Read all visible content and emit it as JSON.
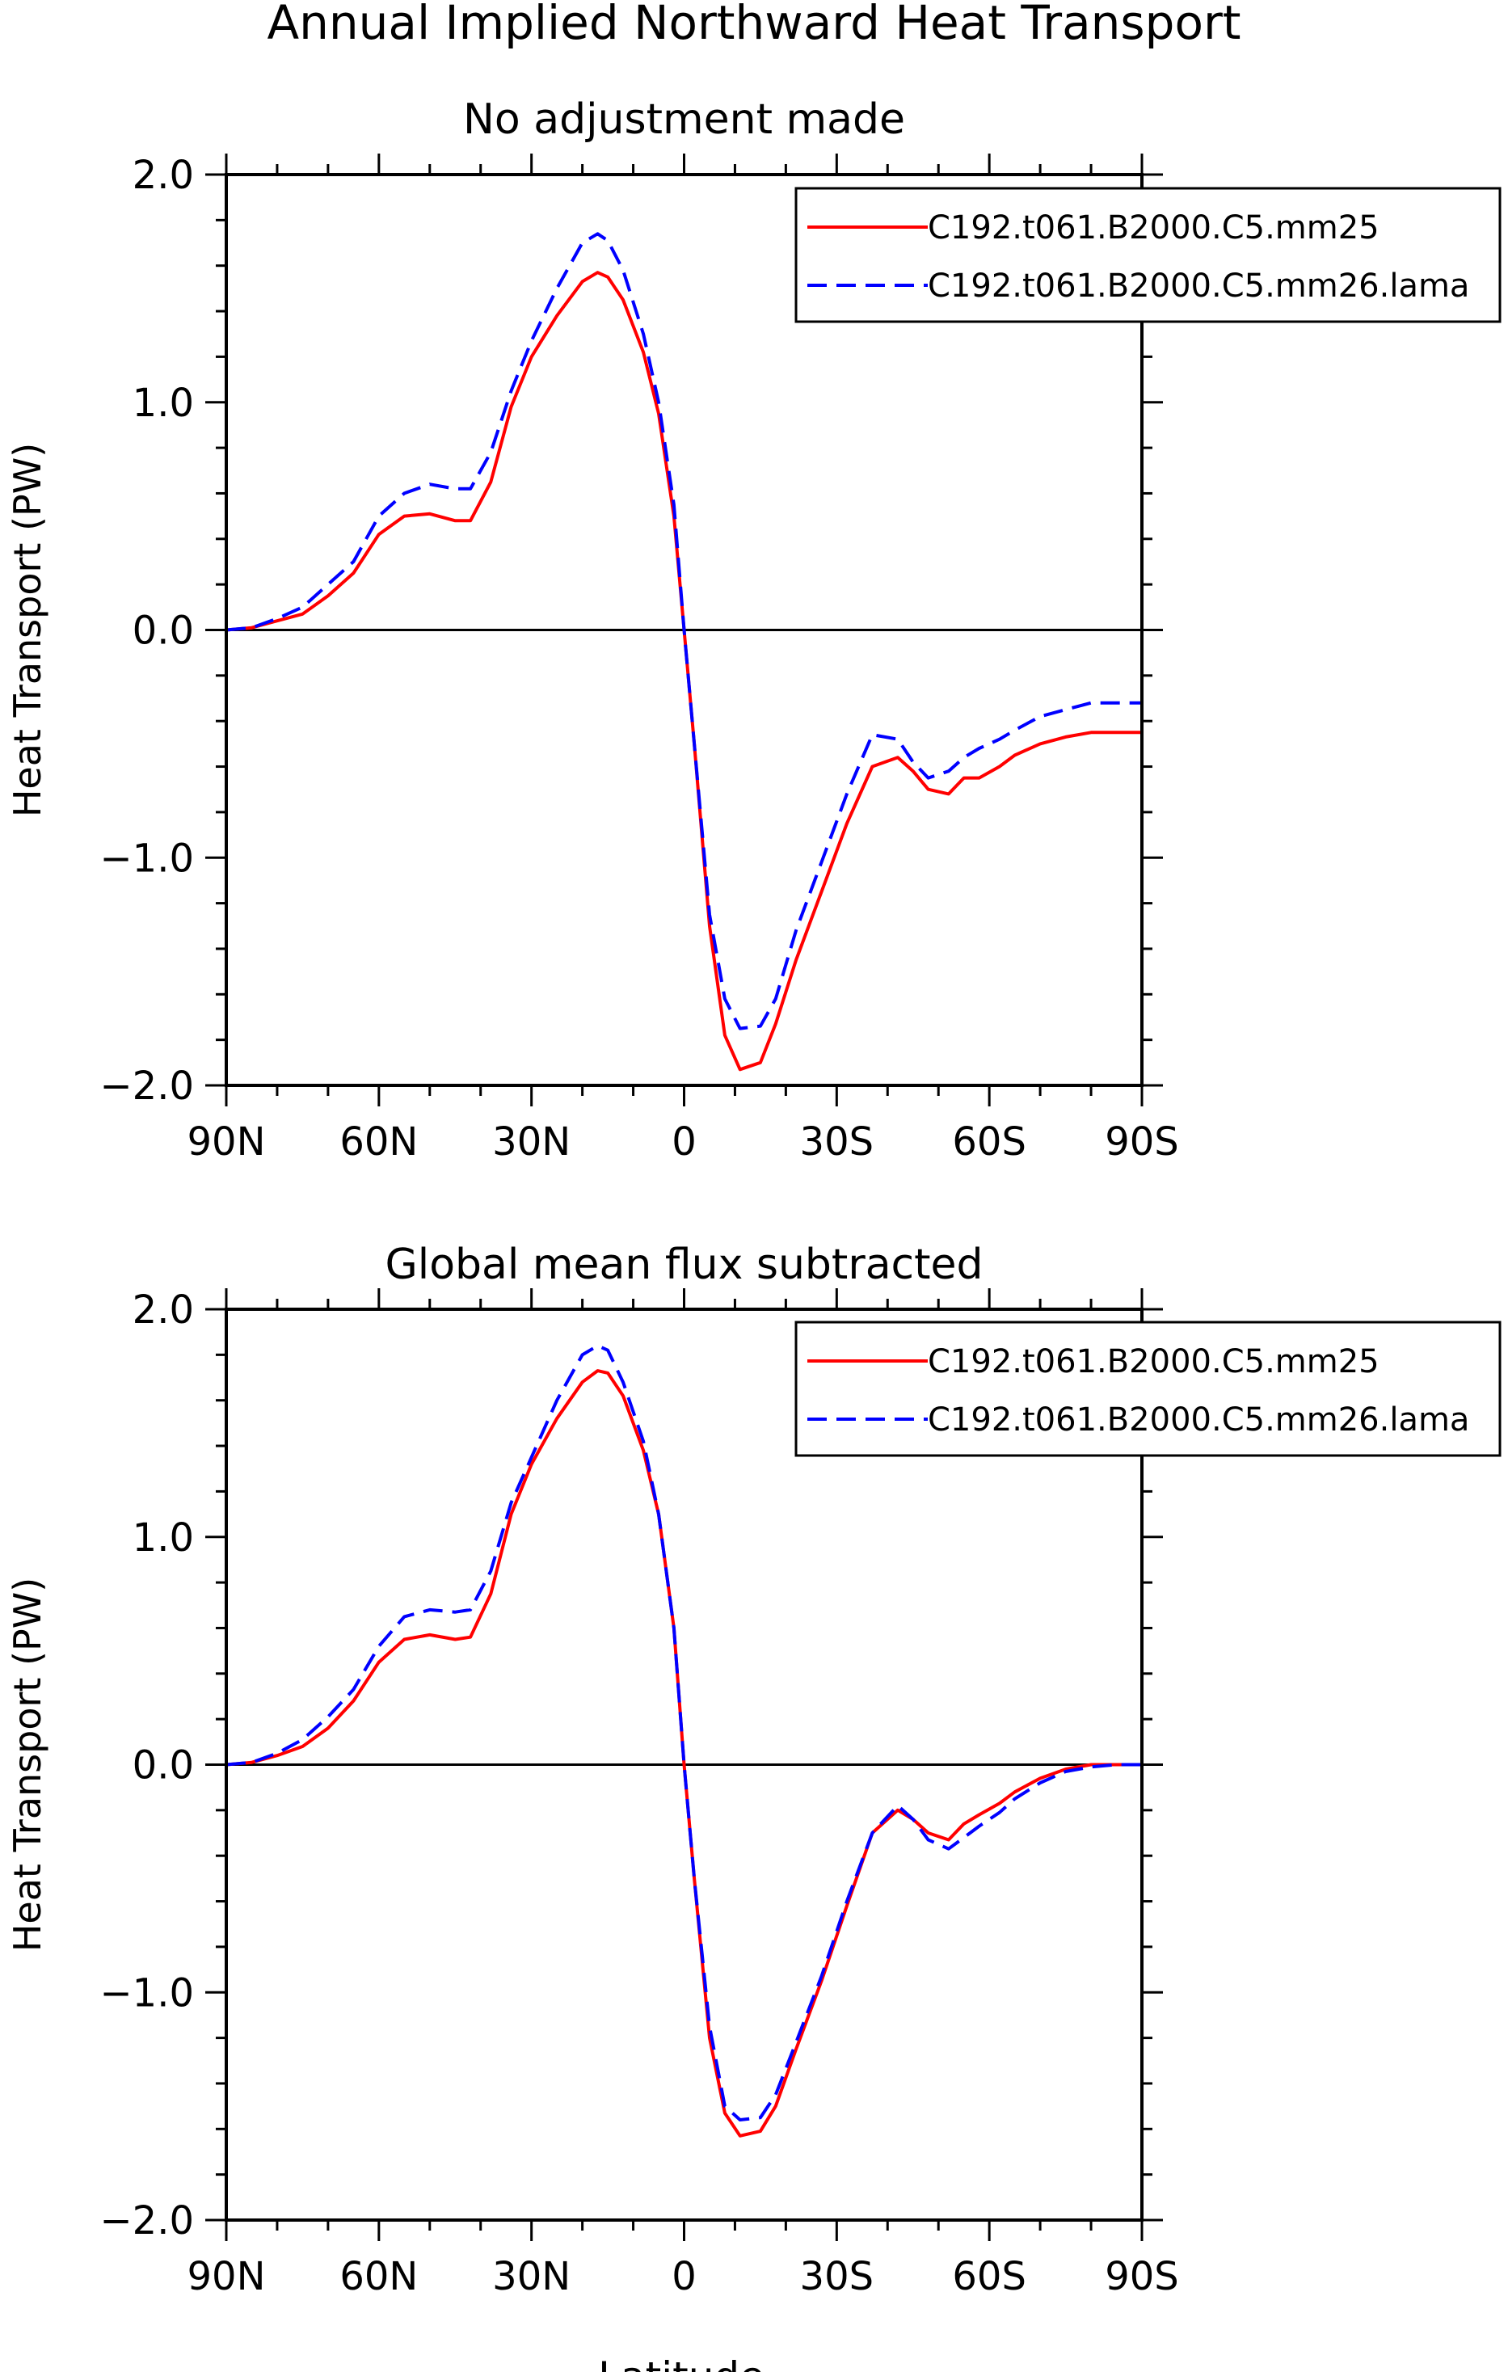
{
  "figure": {
    "title": "Annual Implied Northward Heat Transport",
    "xlabel": "Latitude"
  },
  "colors": {
    "series1": "#ff0000",
    "series2": "#0000ff",
    "axis": "#000000"
  },
  "chart_data": [
    {
      "type": "line",
      "title": "No adjustment made",
      "xlabel": "",
      "ylabel": "Heat Transport (PW)",
      "xlim": [
        90,
        -90
      ],
      "ylim": [
        -2.0,
        2.0
      ],
      "x_tick_values": [
        90,
        60,
        30,
        0,
        -30,
        -60,
        -90
      ],
      "x_tick_labels": [
        "90N",
        "60N",
        "30N",
        "0",
        "30S",
        "60S",
        "90S"
      ],
      "y_tick_values": [
        2.0,
        1.0,
        0.0,
        -1.0,
        -2.0
      ],
      "y_tick_labels": [
        "2.0",
        "1.0",
        "0.0",
        "−1.0",
        "−2.0"
      ],
      "zero_line": true,
      "legend_position": "top-right",
      "x": [
        90,
        85,
        80,
        75,
        70,
        65,
        60,
        55,
        50,
        45,
        42,
        38,
        34,
        30,
        25,
        20,
        17,
        15,
        12,
        8,
        5,
        2,
        0,
        -2,
        -5,
        -8,
        -11,
        -15,
        -18,
        -22,
        -27,
        -32,
        -37,
        -42,
        -45,
        -48,
        -52,
        -55,
        -58,
        -62,
        -65,
        -70,
        -75,
        -80,
        -85,
        -90
      ],
      "series": [
        {
          "name": "C192.t061.B2000.C5.mm25",
          "style": "solid",
          "values": [
            0.0,
            0.01,
            0.04,
            0.07,
            0.15,
            0.25,
            0.42,
            0.5,
            0.51,
            0.48,
            0.48,
            0.65,
            0.98,
            1.2,
            1.38,
            1.53,
            1.57,
            1.55,
            1.45,
            1.22,
            0.95,
            0.5,
            0.0,
            -0.5,
            -1.3,
            -1.78,
            -1.93,
            -1.9,
            -1.73,
            -1.45,
            -1.15,
            -0.85,
            -0.6,
            -0.56,
            -0.62,
            -0.7,
            -0.72,
            -0.65,
            -0.65,
            -0.6,
            -0.55,
            -0.5,
            -0.47,
            -0.45,
            -0.45,
            -0.45
          ]
        },
        {
          "name": "C192.t061.B2000.C5.mm26.lama",
          "style": "dashed",
          "values": [
            0.0,
            0.01,
            0.05,
            0.1,
            0.2,
            0.3,
            0.5,
            0.6,
            0.64,
            0.62,
            0.62,
            0.78,
            1.05,
            1.27,
            1.5,
            1.7,
            1.74,
            1.71,
            1.58,
            1.3,
            1.0,
            0.55,
            0.0,
            -0.5,
            -1.25,
            -1.62,
            -1.75,
            -1.74,
            -1.62,
            -1.32,
            -1.02,
            -0.72,
            -0.46,
            -0.48,
            -0.58,
            -0.65,
            -0.62,
            -0.56,
            -0.52,
            -0.48,
            -0.44,
            -0.38,
            -0.35,
            -0.32,
            -0.32,
            -0.32
          ]
        }
      ]
    },
    {
      "type": "line",
      "title": "Global mean flux subtracted",
      "xlabel": "Latitude",
      "ylabel": "Heat Transport (PW)",
      "xlim": [
        90,
        -90
      ],
      "ylim": [
        -2.0,
        2.0
      ],
      "x_tick_values": [
        90,
        60,
        30,
        0,
        -30,
        -60,
        -90
      ],
      "x_tick_labels": [
        "90N",
        "60N",
        "30N",
        "0",
        "30S",
        "60S",
        "90S"
      ],
      "y_tick_values": [
        2.0,
        1.0,
        0.0,
        -1.0,
        -2.0
      ],
      "y_tick_labels": [
        "2.0",
        "1.0",
        "0.0",
        "−1.0",
        "−2.0"
      ],
      "zero_line": true,
      "legend_position": "top-right",
      "x": [
        90,
        85,
        80,
        75,
        70,
        65,
        60,
        55,
        50,
        45,
        42,
        38,
        34,
        30,
        25,
        20,
        17,
        15,
        12,
        8,
        5,
        2,
        0,
        -2,
        -5,
        -8,
        -11,
        -15,
        -18,
        -22,
        -27,
        -32,
        -37,
        -42,
        -45,
        -48,
        -52,
        -55,
        -58,
        -62,
        -65,
        -70,
        -75,
        -80,
        -85,
        -90
      ],
      "series": [
        {
          "name": "C192.t061.B2000.C5.mm25",
          "style": "solid",
          "values": [
            0.0,
            0.01,
            0.04,
            0.08,
            0.16,
            0.28,
            0.45,
            0.55,
            0.57,
            0.55,
            0.56,
            0.75,
            1.1,
            1.32,
            1.52,
            1.68,
            1.73,
            1.72,
            1.62,
            1.38,
            1.1,
            0.6,
            0.0,
            -0.5,
            -1.2,
            -1.53,
            -1.63,
            -1.61,
            -1.5,
            -1.25,
            -0.95,
            -0.62,
            -0.3,
            -0.2,
            -0.24,
            -0.3,
            -0.33,
            -0.26,
            -0.22,
            -0.17,
            -0.12,
            -0.06,
            -0.02,
            0.0,
            0.0,
            0.0
          ]
        },
        {
          "name": "C192.t061.B2000.C5.mm26.lama",
          "style": "dashed",
          "values": [
            0.0,
            0.01,
            0.05,
            0.11,
            0.21,
            0.33,
            0.52,
            0.65,
            0.68,
            0.67,
            0.68,
            0.85,
            1.15,
            1.35,
            1.6,
            1.8,
            1.84,
            1.82,
            1.68,
            1.42,
            1.1,
            0.6,
            0.0,
            -0.5,
            -1.15,
            -1.5,
            -1.56,
            -1.55,
            -1.45,
            -1.22,
            -0.93,
            -0.6,
            -0.3,
            -0.18,
            -0.24,
            -0.33,
            -0.37,
            -0.32,
            -0.27,
            -0.21,
            -0.15,
            -0.08,
            -0.03,
            -0.01,
            0.0,
            0.0
          ]
        }
      ]
    }
  ]
}
